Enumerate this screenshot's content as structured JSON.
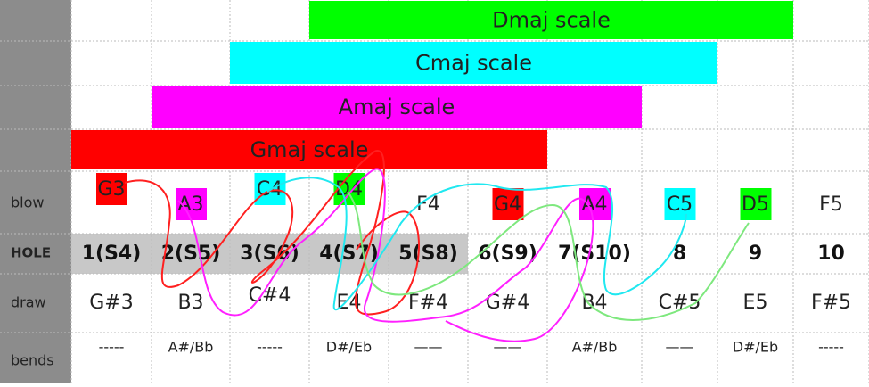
{
  "scales": [
    {
      "label": "Dmaj scale"
    },
    {
      "label": "Cmaj scale"
    },
    {
      "label": "Amaj scale"
    },
    {
      "label": "Gmaj scale"
    }
  ],
  "row_labels": {
    "blow": "blow",
    "hole": "HOLE",
    "draw": "draw",
    "bends": "bends"
  },
  "blow": [
    "G3",
    "A3",
    "C4",
    "D4",
    "F4",
    "G4",
    "A4",
    "C5",
    "D5",
    "F5"
  ],
  "hole": [
    "1(S4)",
    "2(S5)",
    "3(S6)",
    "4(S7)",
    "5(S8)",
    "6(S9)",
    "7(S10)",
    "8",
    "9",
    "10"
  ],
  "draw": [
    "G#3",
    "B3",
    "C#4",
    "E4",
    "F#4",
    "G#4",
    "B4",
    "C#5",
    "E5",
    "F#5"
  ],
  "bends": [
    "-----",
    "A#/Bb",
    "-----",
    "D#/Eb",
    "——",
    "——",
    "A#/Bb",
    "——",
    "D#/Eb",
    "-----"
  ]
}
